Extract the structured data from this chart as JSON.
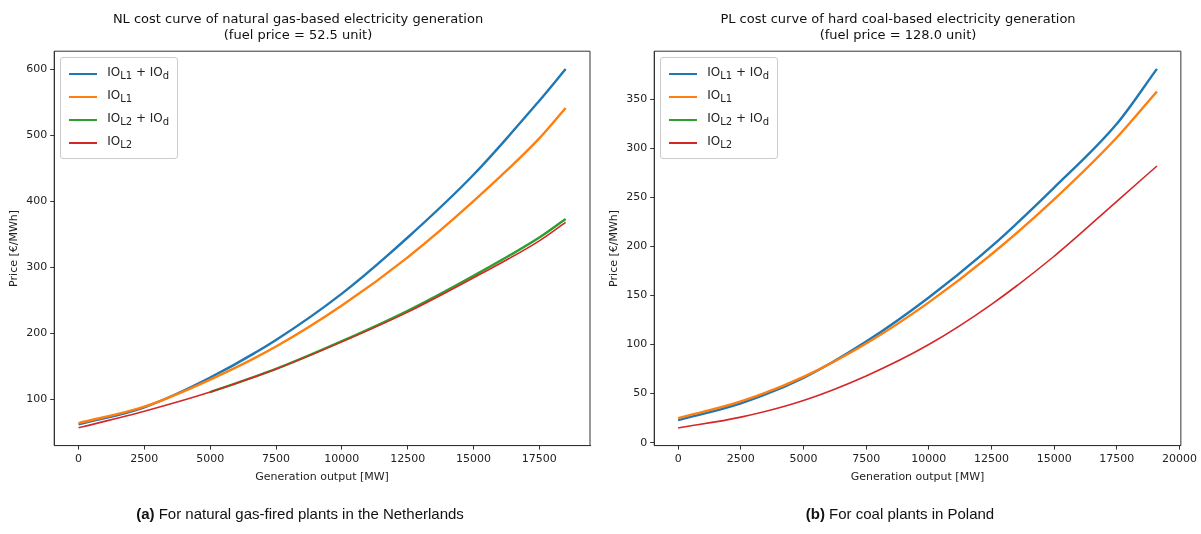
{
  "chart_data": [
    {
      "type": "line",
      "title": "NL cost curve of natural gas-based electricity generation\n(fuel price = 52.5 unit)",
      "xlabel": "Generation output [MW]",
      "ylabel": "Price [€/MWh]",
      "x": [
        0,
        2500,
        5000,
        7500,
        10000,
        12500,
        15000,
        17500,
        18500
      ],
      "series": [
        {
          "name": "IO$_{L1}$ + IO$_{d}$",
          "color": "#1f77b4",
          "values": [
            62,
            88,
            133,
            190,
            260,
            345,
            440,
            552,
            600
          ]
        },
        {
          "name": "IO$_{L1}$",
          "color": "#ff7f0e",
          "values": [
            64,
            89,
            130,
            180,
            242,
            315,
            400,
            495,
            541
          ]
        },
        {
          "name": "IO$_{L2}$ + IO$_{d}$",
          "color": "#2ca02c",
          "values": [
            null,
            null,
            111,
            146,
            188,
            234,
            287,
            345,
            373
          ]
        },
        {
          "name": "IO$_{L2}$",
          "color": "#d62728",
          "values": [
            57,
            82,
            111,
            146,
            187,
            232,
            284,
            340,
            368
          ]
        }
      ],
      "xlim": [
        -925,
        19425
      ],
      "ylim": [
        30,
        627
      ],
      "xticks": [
        0,
        2500,
        5000,
        7500,
        10000,
        12500,
        15000,
        17500
      ],
      "yticks": [
        100,
        200,
        300,
        400,
        500,
        600
      ],
      "grid": false,
      "legend": "top left",
      "marker": "none",
      "line_style": "solid",
      "annotations": [
        "(a) For natural gas-fired plants in the Netherlands"
      ]
    },
    {
      "type": "line",
      "title": "PL cost curve of hard coal-based electricity generation\n(fuel price = 128.0 unit)",
      "xlabel": "Generation output [MW]",
      "ylabel": "Price [€/MWh]",
      "x": [
        0,
        2500,
        5000,
        7500,
        10000,
        12500,
        15000,
        17500,
        19100
      ],
      "series": [
        {
          "name": "IO$_{L1}$ + IO$_{d}$",
          "color": "#1f77b4",
          "values": [
            23,
            40,
            66,
            103,
            148,
            200,
            260,
            325,
            381
          ]
        },
        {
          "name": "IO$_{L1}$",
          "color": "#ff7f0e",
          "values": [
            25,
            42,
            67,
            101,
            143,
            192,
            248,
            311,
            358
          ]
        },
        {
          "name": "IO$_{L2}$ + IO$_{d}$",
          "color": "#2ca02c",
          "values": [
            null,
            null,
            null,
            null,
            null,
            null,
            null,
            null,
            null
          ]
        },
        {
          "name": "IO$_{L2}$",
          "color": "#d62728",
          "values": [
            15,
            26,
            43,
            68,
            100,
            141,
            190,
            246,
            282
          ]
        }
      ],
      "xlim": [
        -955,
        20055
      ],
      "ylim": [
        -3,
        399
      ],
      "xticks": [
        0,
        2500,
        5000,
        7500,
        10000,
        12500,
        15000,
        17500,
        20000
      ],
      "yticks": [
        0,
        50,
        100,
        150,
        200,
        250,
        300,
        350
      ],
      "grid": false,
      "legend": "top left",
      "marker": "none",
      "line_style": "solid",
      "annotations": [
        "(b) For coal plants in Poland"
      ]
    }
  ]
}
